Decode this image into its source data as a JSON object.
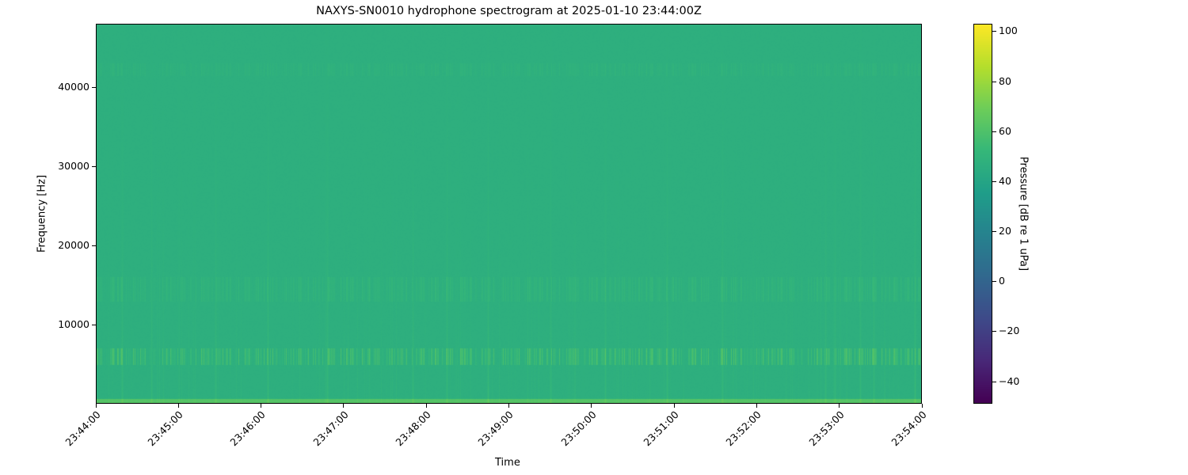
{
  "chart_data": {
    "type": "heatmap",
    "title": "NAXYS-SN0010 hydrophone spectrogram at 2025-01-10 23:44:00Z",
    "xlabel": "Time",
    "ylabel": "Frequency [Hz]",
    "xlim": [
      "23:44:00",
      "23:54:00"
    ],
    "ylim": [
      0,
      48000
    ],
    "xticks": [
      "23:44:00",
      "23:45:00",
      "23:46:00",
      "23:47:00",
      "23:48:00",
      "23:49:00",
      "23:50:00",
      "23:51:00",
      "23:52:00",
      "23:53:00",
      "23:54:00"
    ],
    "yticks": [
      10000,
      20000,
      30000,
      40000
    ],
    "colormap": "viridis",
    "colorbar": {
      "label": "Pressure [dB re 1 uPa]",
      "range": [
        -49,
        103
      ],
      "ticks": [
        -40,
        -20,
        0,
        20,
        40,
        60,
        80,
        100
      ]
    },
    "background_level_db": 47,
    "bands": [
      {
        "freq_range_hz": [
          0,
          600
        ],
        "level_db": 62
      },
      {
        "freq_range_hz": [
          5000,
          7000
        ],
        "level_db": 60
      },
      {
        "freq_range_hz": [
          13000,
          16000
        ],
        "level_db": 52
      },
      {
        "freq_range_hz": [
          41500,
          43000
        ],
        "level_db": 50
      }
    ],
    "transient_times": [
      "23:44:19",
      "23:44:40",
      "23:45:27",
      "23:46:05",
      "23:46:48",
      "23:47:50",
      "23:48:15",
      "23:48:45",
      "23:49:30",
      "23:50:10",
      "23:50:55",
      "23:51:35",
      "23:52:50",
      "23:52:57",
      "23:53:15",
      "23:53:25",
      "23:53:55"
    ]
  }
}
